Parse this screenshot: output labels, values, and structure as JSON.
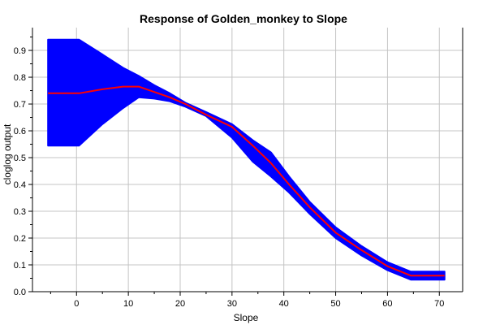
{
  "chart_data": {
    "type": "area",
    "title": "Response of Golden_monkey to Slope",
    "xlabel": "Slope",
    "ylabel": "cloglog output",
    "xlim": [
      -8.5,
      74.5
    ],
    "ylim": [
      0,
      0.985
    ],
    "x_ticks": [
      0,
      10,
      20,
      30,
      40,
      50,
      60,
      70
    ],
    "y_ticks": [
      0.0,
      0.1,
      0.2,
      0.3,
      0.4,
      0.5,
      0.6,
      0.7,
      0.8,
      0.9
    ],
    "y_tick_labels": [
      "0.0",
      "0.1",
      "0.2",
      "0.3",
      "0.4",
      "0.5",
      "0.6",
      "0.7",
      "0.8",
      "0.9"
    ],
    "grid": true,
    "x": [
      -5.5,
      0.5,
      5,
      9,
      12,
      15,
      18,
      21,
      25,
      30,
      34,
      37.5,
      41,
      45,
      50,
      55,
      60,
      64.5,
      71
    ],
    "series": [
      {
        "role": "mean",
        "color": "#ff0000",
        "values": [
          0.74,
          0.74,
          0.755,
          0.765,
          0.765,
          0.745,
          0.725,
          0.7,
          0.66,
          0.615,
          0.545,
          0.48,
          0.4,
          0.315,
          0.22,
          0.155,
          0.095,
          0.06,
          0.06
        ]
      },
      {
        "role": "upper",
        "color": "#0000ff",
        "values": [
          0.94,
          0.94,
          0.885,
          0.835,
          0.805,
          0.77,
          0.74,
          0.705,
          0.67,
          0.625,
          0.565,
          0.52,
          0.43,
          0.335,
          0.24,
          0.17,
          0.11,
          0.075,
          0.075
        ]
      },
      {
        "role": "lower",
        "color": "#0000ff",
        "values": [
          0.545,
          0.545,
          0.625,
          0.685,
          0.725,
          0.72,
          0.71,
          0.69,
          0.655,
          0.575,
          0.485,
          0.43,
          0.37,
          0.29,
          0.2,
          0.135,
          0.08,
          0.045,
          0.045
        ]
      }
    ]
  }
}
